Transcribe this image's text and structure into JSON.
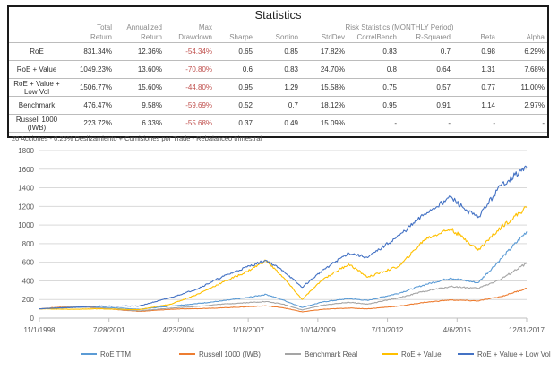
{
  "stats_table": {
    "title": "Statistics",
    "risk_group_label": "Risk Statistics (MONTHLY Period)",
    "header_line1": [
      "",
      "Total",
      "Annualized",
      "Max",
      "",
      "",
      "",
      "",
      "",
      "",
      ""
    ],
    "header_line2": [
      "",
      "Return",
      "Return",
      "Drawdown",
      "Sharpe",
      "Sortino",
      "StdDev",
      "CorrelBench",
      "R-Squared",
      "Beta",
      "Alpha"
    ],
    "rows": [
      {
        "name": "RoE",
        "cells": [
          "831.34%",
          "12.36%",
          "-54.34%",
          "0.65",
          "0.85",
          "17.82%",
          "0.83",
          "0.7",
          "0.98",
          "6.29%"
        ]
      },
      {
        "name": "RoE + Value",
        "cells": [
          "1049.23%",
          "13.60%",
          "-70.80%",
          "0.6",
          "0.83",
          "24.70%",
          "0.8",
          "0.64",
          "1.31",
          "7.68%"
        ]
      },
      {
        "name": "RoE + Value + Low Vol",
        "cells": [
          "1506.77%",
          "15.60%",
          "-44.80%",
          "0.95",
          "1.29",
          "15.58%",
          "0.75",
          "0.57",
          "0.77",
          "11.00%"
        ]
      },
      {
        "name": "Benchmark",
        "cells": [
          "476.47%",
          "9.58%",
          "-59.69%",
          "0.52",
          "0.7",
          "18.12%",
          "0.95",
          "0.91",
          "1.14",
          "2.97%"
        ]
      },
      {
        "name": "Russell 1000 (IWB)",
        "cells": [
          "223.72%",
          "6.33%",
          "-55.68%",
          "0.37",
          "0.49",
          "15.09%",
          "-",
          "-",
          "-",
          "-"
        ]
      }
    ],
    "footer": "20 Acciones - 0.25% Deslizamiento + Comisiones por Trade - Rebalanceo trimestral",
    "negative_color": "#c0504d"
  },
  "chart_data": {
    "type": "line",
    "title": "",
    "xlabel": "",
    "ylabel": "",
    "x_ticks": [
      "11/1/1998",
      "7/28/2001",
      "4/23/2004",
      "1/18/2007",
      "10/14/2009",
      "7/10/2012",
      "4/6/2015",
      "12/31/2017"
    ],
    "x_range": [
      "11/1/1998",
      "12/31/2017"
    ],
    "y_ticks": [
      0,
      200,
      400,
      600,
      800,
      1000,
      1200,
      1400,
      1600,
      1800
    ],
    "ylim": [
      0,
      1800
    ],
    "grid": "horizontal",
    "legend_position": "bottom",
    "series": [
      {
        "name": "RoE TTM",
        "color": "#5b9bd5",
        "points": [
          [
            "11/1/1998",
            100
          ],
          [
            "2/1/2000",
            115
          ],
          [
            "3/1/2001",
            120
          ],
          [
            "10/1/2002",
            95
          ],
          [
            "1/1/2004",
            130
          ],
          [
            "1/1/2005",
            155
          ],
          [
            "1/1/2006",
            185
          ],
          [
            "1/1/2007",
            220
          ],
          [
            "10/1/2007",
            255
          ],
          [
            "6/1/2008",
            195
          ],
          [
            "3/1/2009",
            115
          ],
          [
            "1/1/2010",
            175
          ],
          [
            "1/1/2011",
            210
          ],
          [
            "10/1/2011",
            190
          ],
          [
            "1/1/2013",
            270
          ],
          [
            "1/1/2014",
            360
          ],
          [
            "1/1/2015",
            430
          ],
          [
            "9/1/2015",
            400
          ],
          [
            "2/1/2016",
            380
          ],
          [
            "1/1/2017",
            640
          ],
          [
            "12/31/2017",
            930
          ]
        ]
      },
      {
        "name": "Russell 1000 (IWB)",
        "color": "#ed7d31",
        "points": [
          [
            "11/1/1998",
            100
          ],
          [
            "3/1/2000",
            130
          ],
          [
            "3/1/2001",
            108
          ],
          [
            "10/1/2002",
            72
          ],
          [
            "1/1/2004",
            95
          ],
          [
            "1/1/2005",
            102
          ],
          [
            "1/1/2006",
            110
          ],
          [
            "10/1/2007",
            132
          ],
          [
            "6/1/2008",
            112
          ],
          [
            "3/1/2009",
            68
          ],
          [
            "1/1/2010",
            95
          ],
          [
            "1/1/2011",
            108
          ],
          [
            "10/1/2011",
            100
          ],
          [
            "1/1/2013",
            130
          ],
          [
            "1/1/2014",
            170
          ],
          [
            "1/1/2015",
            195
          ],
          [
            "2/1/2016",
            185
          ],
          [
            "1/1/2017",
            232
          ],
          [
            "12/31/2017",
            320
          ]
        ]
      },
      {
        "name": "Benchmark Real",
        "color": "#a5a5a5",
        "points": [
          [
            "11/1/1998",
            100
          ],
          [
            "3/1/2000",
            122
          ],
          [
            "3/1/2001",
            110
          ],
          [
            "10/1/2002",
            78
          ],
          [
            "1/1/2004",
            108
          ],
          [
            "1/1/2005",
            125
          ],
          [
            "1/1/2006",
            150
          ],
          [
            "10/1/2007",
            178
          ],
          [
            "6/1/2008",
            150
          ],
          [
            "3/1/2009",
            88
          ],
          [
            "1/1/2010",
            140
          ],
          [
            "1/1/2011",
            170
          ],
          [
            "10/1/2011",
            150
          ],
          [
            "1/1/2013",
            220
          ],
          [
            "1/1/2014",
            290
          ],
          [
            "1/1/2015",
            340
          ],
          [
            "2/1/2016",
            320
          ],
          [
            "1/1/2017",
            420
          ],
          [
            "12/31/2017",
            590
          ]
        ]
      },
      {
        "name": "RoE + Value",
        "color": "#ffc000",
        "points": [
          [
            "11/1/1998",
            100
          ],
          [
            "3/1/2000",
            95
          ],
          [
            "3/1/2001",
            100
          ],
          [
            "10/1/2002",
            90
          ],
          [
            "1/1/2004",
            150
          ],
          [
            "1/1/2005",
            250
          ],
          [
            "1/1/2006",
            380
          ],
          [
            "1/1/2007",
            500
          ],
          [
            "10/1/2007",
            620
          ],
          [
            "6/1/2008",
            440
          ],
          [
            "3/1/2009",
            200
          ],
          [
            "1/1/2010",
            420
          ],
          [
            "1/1/2011",
            580
          ],
          [
            "10/1/2011",
            440
          ],
          [
            "1/1/2013",
            560
          ],
          [
            "1/1/2014",
            850
          ],
          [
            "1/1/2015",
            960
          ],
          [
            "9/1/2015",
            830
          ],
          [
            "2/1/2016",
            730
          ],
          [
            "1/1/2017",
            980
          ],
          [
            "12/31/2017",
            1190
          ]
        ]
      },
      {
        "name": "RoE + Value + Low Vol",
        "color": "#4472c4",
        "points": [
          [
            "11/1/1998",
            100
          ],
          [
            "3/1/2000",
            115
          ],
          [
            "3/1/2001",
            130
          ],
          [
            "10/1/2002",
            130
          ],
          [
            "1/1/2004",
            220
          ],
          [
            "1/1/2005",
            310
          ],
          [
            "1/1/2006",
            440
          ],
          [
            "1/1/2007",
            550
          ],
          [
            "10/1/2007",
            620
          ],
          [
            "6/1/2008",
            510
          ],
          [
            "3/1/2009",
            330
          ],
          [
            "1/1/2010",
            520
          ],
          [
            "1/1/2011",
            700
          ],
          [
            "10/1/2011",
            650
          ],
          [
            "1/1/2013",
            890
          ],
          [
            "1/1/2014",
            1120
          ],
          [
            "1/1/2015",
            1300
          ],
          [
            "9/1/2015",
            1150
          ],
          [
            "2/1/2016",
            1080
          ],
          [
            "1/1/2017",
            1430
          ],
          [
            "12/31/2017",
            1620
          ]
        ]
      }
    ]
  }
}
